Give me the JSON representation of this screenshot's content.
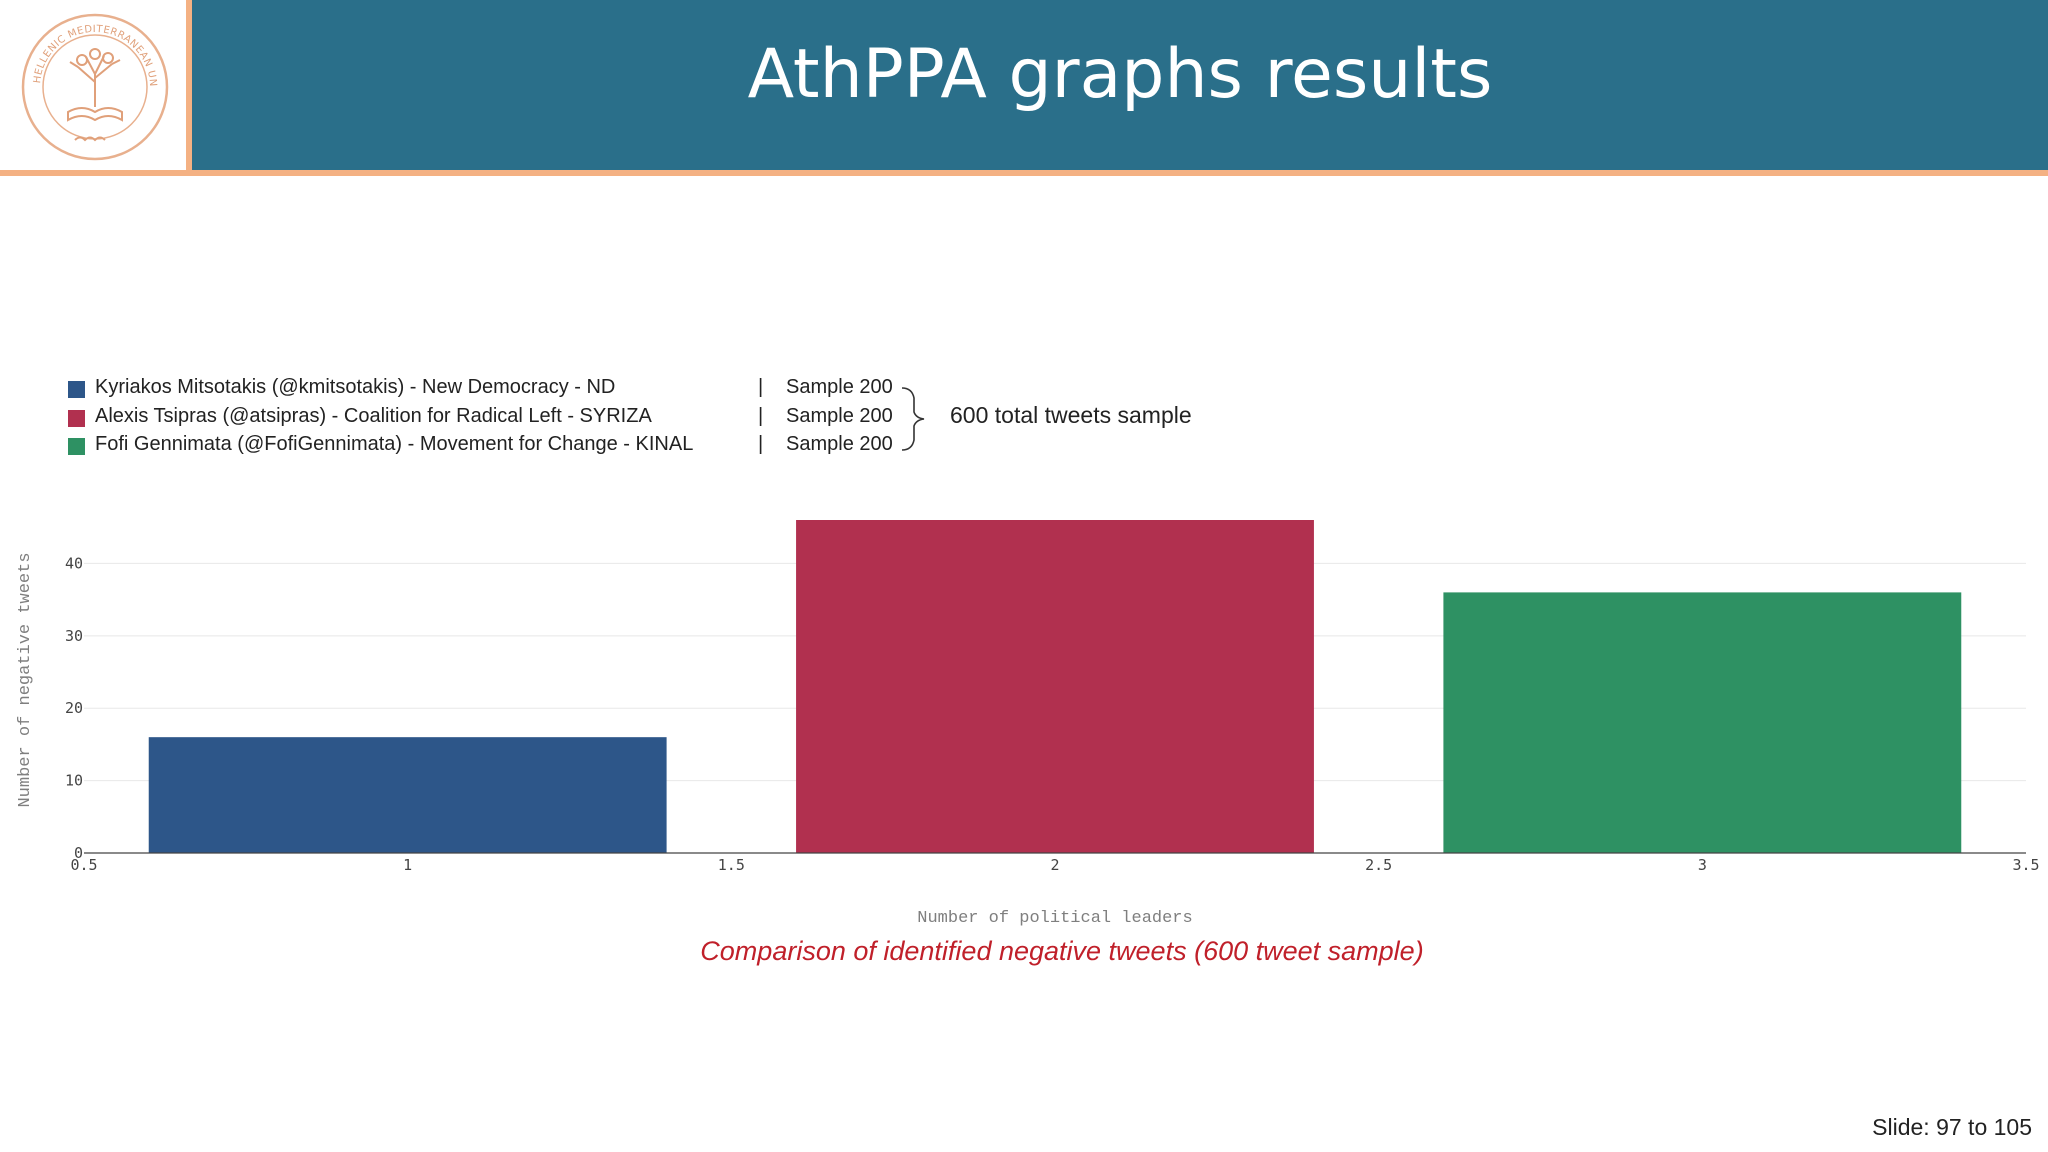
{
  "header": {
    "title": "AthPPA graphs results",
    "logo_text": "HELLENIC MEDITERRANEAN UNIVERSITY"
  },
  "legend": {
    "items": [
      {
        "label": "Kyriakos Mitsotakis (@kmitsotakis) - New Democracy - ND",
        "separator": "|",
        "sample": "Sample 200",
        "color": "#2d5689"
      },
      {
        "label": "Alexis Tsipras (@atsipras) - Coalition for Radical Left - SYRIZA",
        "separator": "|",
        "sample": "Sample 200",
        "color": "#b1304f"
      },
      {
        "label": "Fofi Gennimata (@FofiGennimata) - Movement for Change - KINAL",
        "separator": "|",
        "sample": "Sample 200",
        "color": "#2e9163"
      }
    ],
    "total_note": "600 total tweets sample"
  },
  "chart_data": {
    "type": "bar",
    "x": [
      1,
      2,
      3
    ],
    "values": [
      16,
      46,
      36
    ],
    "colors": [
      "#2d5689",
      "#b1304f",
      "#2e9163"
    ],
    "bar_width": 0.8,
    "xlabel": "Number of political leaders",
    "ylabel": "Number of negative tweets",
    "xlim": [
      0.5,
      3.5
    ],
    "ylim": [
      0,
      46
    ],
    "x_ticks": [
      "0.5",
      "1",
      "1.5",
      "2",
      "2.5",
      "3",
      "3.5"
    ],
    "y_ticks": [
      "0",
      "10",
      "20",
      "30",
      "40"
    ],
    "grid": true
  },
  "caption": "Comparison of identified negative tweets (600 tweet sample)",
  "footer": {
    "slide_counter": "Slide:  97  to 105"
  }
}
